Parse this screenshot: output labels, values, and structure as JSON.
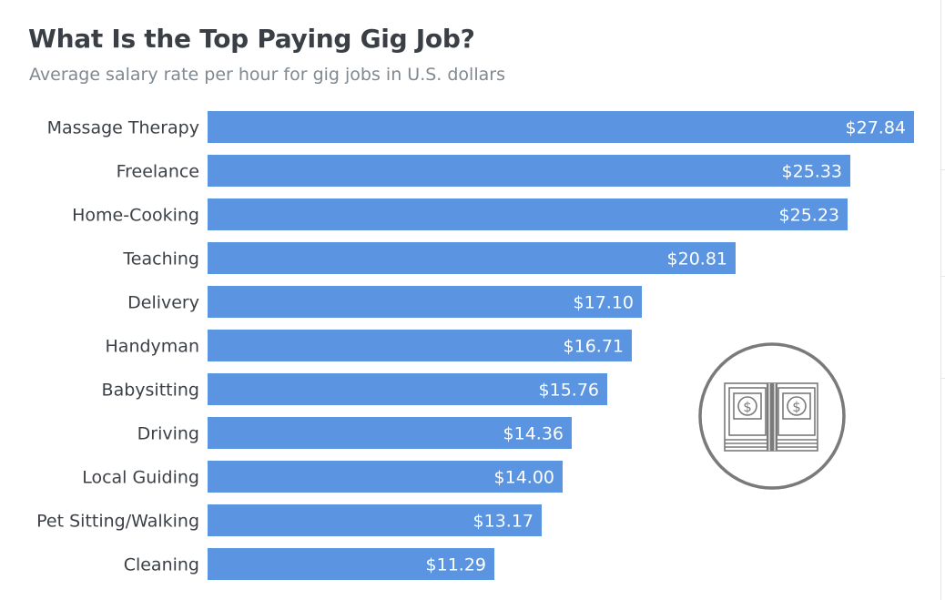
{
  "header": {
    "title": "What Is the Top Paying Gig Job?",
    "subtitle": "Average salary rate per hour for gig jobs in U.S. dollars"
  },
  "chart_data": {
    "type": "bar",
    "orientation": "horizontal",
    "title": "What Is the Top Paying Gig Job?",
    "subtitle": "Average salary rate per hour for gig jobs in U.S. dollars",
    "categories": [
      "Massage Therapy",
      "Freelance",
      "Home-Cooking",
      "Teaching",
      "Delivery",
      "Handyman",
      "Babysitting",
      "Driving",
      "Local Guiding",
      "Pet Sitting/Walking",
      "Cleaning"
    ],
    "values": [
      27.84,
      25.33,
      25.23,
      20.81,
      17.1,
      16.71,
      15.76,
      14.36,
      14.0,
      13.17,
      11.29
    ],
    "value_labels": [
      "$27.84",
      "$25.33",
      "$25.23",
      "$20.81",
      "$17.10",
      "$16.71",
      "$15.76",
      "$14.36",
      "$14.00",
      "$13.17",
      "$11.29"
    ],
    "xlim": [
      0,
      27.84
    ],
    "grid": false,
    "legend": "none",
    "bar_color": "#5b94e0"
  },
  "colors": {
    "bar": "#5b94e0",
    "title": "#3a3f45",
    "subtitle": "#808890",
    "category_text": "#3b4046",
    "value_text": "#ffffff",
    "icon": "#7a7a7a"
  },
  "icon": {
    "name": "money-stack-icon",
    "bill_glyph": "$"
  }
}
